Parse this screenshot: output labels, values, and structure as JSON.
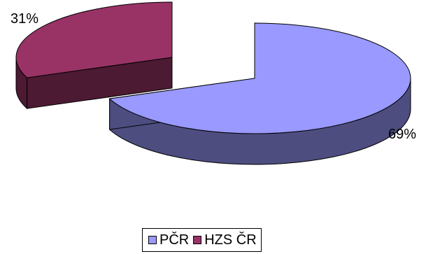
{
  "chart_data": {
    "type": "pie",
    "style": "3d-exploded",
    "title": "",
    "categories": [
      "PČR",
      "HZS ČR"
    ],
    "values": [
      69,
      31
    ],
    "data_labels": [
      "69%",
      "31%"
    ],
    "colors": {
      "PČR": {
        "top": "#9999ff",
        "side": "#4d4d80"
      },
      "HZS ČR": {
        "top": "#993366",
        "side": "#4d1a33"
      }
    },
    "legend": {
      "placement": "bottom"
    }
  },
  "legend": {
    "items": [
      {
        "label": "PČR",
        "color": "#9999ff"
      },
      {
        "label": "HZS ČR",
        "color": "#993366"
      }
    ]
  }
}
